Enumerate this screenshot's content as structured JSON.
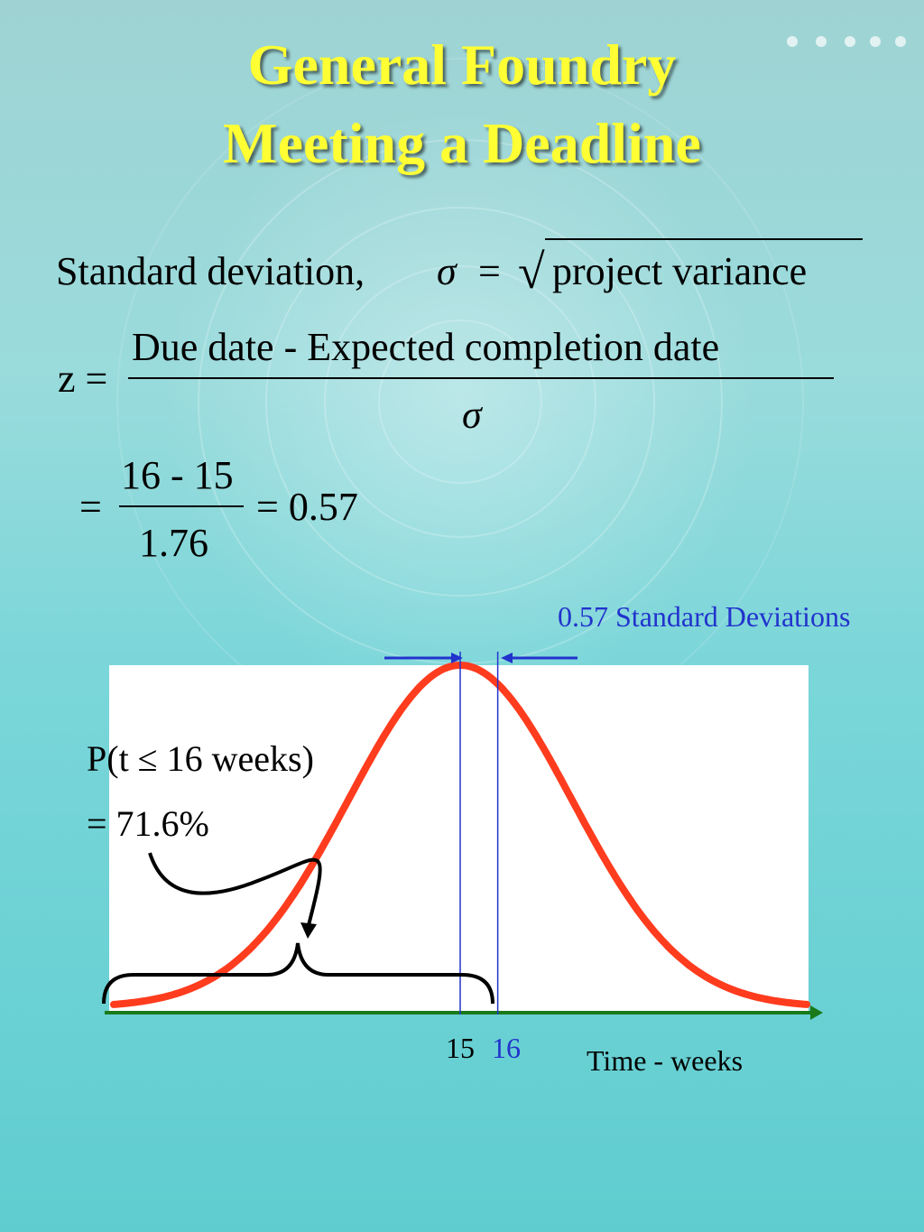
{
  "title": {
    "line1": "General Foundry",
    "line2": "Meeting a Deadline"
  },
  "formulas": {
    "sd_label": "Standard deviation,",
    "sigma": "σ",
    "equals": "=",
    "sqrt_symbol": "√",
    "radicand": "project variance",
    "z_label": "z =",
    "z_numerator": "Due date - Expected completion date",
    "z_denominator": "σ",
    "calc_equals": "=",
    "calc_numerator": "16 - 15",
    "calc_denominator": "1.76",
    "calc_result": "= 0.57"
  },
  "annotations": {
    "std_dev_label": "0.57 Standard Deviations",
    "probability_line1": "P(t ≤ 16 weeks)",
    "probability_line2": "= 71.6%",
    "axis_label": "Time - weeks",
    "tick_15": "15",
    "tick_16": "16"
  },
  "colors": {
    "title": "#ffff33",
    "curve": "#ff3c1e",
    "axis": "#1a7a1a",
    "marker": "#2233cc"
  },
  "chart_data": {
    "type": "line",
    "distribution": "normal",
    "mean": 15,
    "due_date": 16,
    "standard_deviation": 1.76,
    "z": 0.57,
    "probability": 0.716,
    "x_ticks": [
      15,
      16
    ],
    "xlabel": "Time - weeks"
  }
}
